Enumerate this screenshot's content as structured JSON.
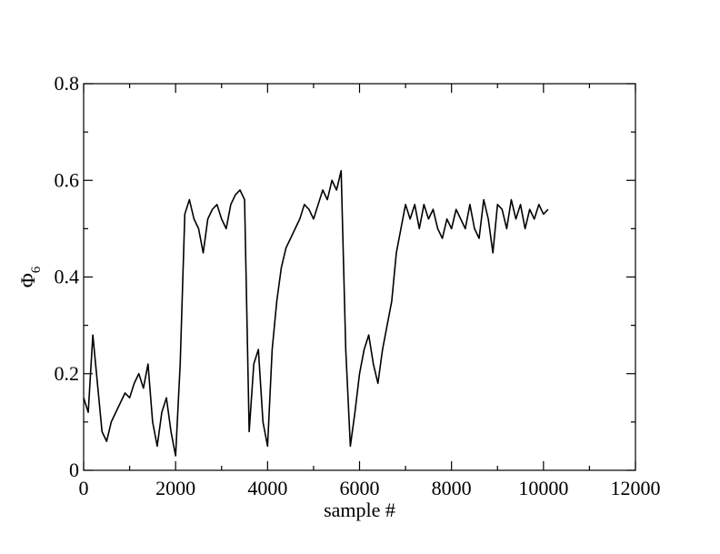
{
  "chart_data": {
    "type": "line",
    "title": "",
    "xlabel": "sample #",
    "ylabel_main": "Φ",
    "ylabel_sub": "6",
    "xlim": [
      0,
      12000
    ],
    "ylim": [
      0,
      0.8
    ],
    "x_ticks": [
      0,
      2000,
      4000,
      6000,
      8000,
      10000,
      12000
    ],
    "x_tick_labels": [
      "0",
      "2000",
      "4000",
      "6000",
      "8000",
      "10000",
      "12000"
    ],
    "y_ticks": [
      0,
      0.2,
      0.4,
      0.6,
      0.8
    ],
    "y_tick_labels": [
      "0",
      "0.2",
      "0.4",
      "0.6",
      "0.8"
    ],
    "grid": false,
    "legend": "none",
    "line_color": "#000000",
    "series": [
      {
        "x": [
          0,
          100,
          200,
          300,
          400,
          500,
          600,
          700,
          800,
          900,
          1000,
          1100,
          1200,
          1300,
          1400,
          1500,
          1600,
          1700,
          1800,
          1900,
          2000,
          2100,
          2200,
          2300,
          2400,
          2500,
          2600,
          2700,
          2800,
          2900,
          3000,
          3100,
          3200,
          3300,
          3400,
          3500,
          3600,
          3700,
          3800,
          3900,
          4000,
          4100,
          4200,
          4300,
          4400,
          4500,
          4600,
          4700,
          4800,
          4900,
          5000,
          5100,
          5200,
          5300,
          5400,
          5500,
          5600,
          5700,
          5800,
          5900,
          6000,
          6100,
          6200,
          6300,
          6400,
          6500,
          6600,
          6700,
          6800,
          6900,
          7000,
          7100,
          7200,
          7300,
          7400,
          7500,
          7600,
          7700,
          7800,
          7900,
          8000,
          8100,
          8200,
          8300,
          8400,
          8500,
          8600,
          8700,
          8800,
          8900,
          9000,
          9100,
          9200,
          9300,
          9400,
          9500,
          9600,
          9700,
          9800,
          9900,
          10000,
          10100
        ],
        "y": [
          0.15,
          0.12,
          0.28,
          0.18,
          0.08,
          0.06,
          0.1,
          0.12,
          0.14,
          0.16,
          0.15,
          0.18,
          0.2,
          0.17,
          0.22,
          0.1,
          0.05,
          0.12,
          0.15,
          0.08,
          0.03,
          0.22,
          0.53,
          0.56,
          0.52,
          0.5,
          0.45,
          0.52,
          0.54,
          0.55,
          0.52,
          0.5,
          0.55,
          0.57,
          0.58,
          0.56,
          0.08,
          0.22,
          0.25,
          0.1,
          0.05,
          0.25,
          0.35,
          0.42,
          0.46,
          0.48,
          0.5,
          0.52,
          0.55,
          0.54,
          0.52,
          0.55,
          0.58,
          0.56,
          0.6,
          0.58,
          0.62,
          0.25,
          0.05,
          0.12,
          0.2,
          0.25,
          0.28,
          0.22,
          0.18,
          0.25,
          0.3,
          0.35,
          0.45,
          0.5,
          0.55,
          0.52,
          0.55,
          0.5,
          0.55,
          0.52,
          0.54,
          0.5,
          0.48,
          0.52,
          0.5,
          0.54,
          0.52,
          0.5,
          0.55,
          0.5,
          0.48,
          0.56,
          0.52,
          0.45,
          0.55,
          0.54,
          0.5,
          0.56,
          0.52,
          0.55,
          0.5,
          0.54,
          0.52,
          0.55,
          0.53,
          0.54
        ]
      }
    ]
  }
}
